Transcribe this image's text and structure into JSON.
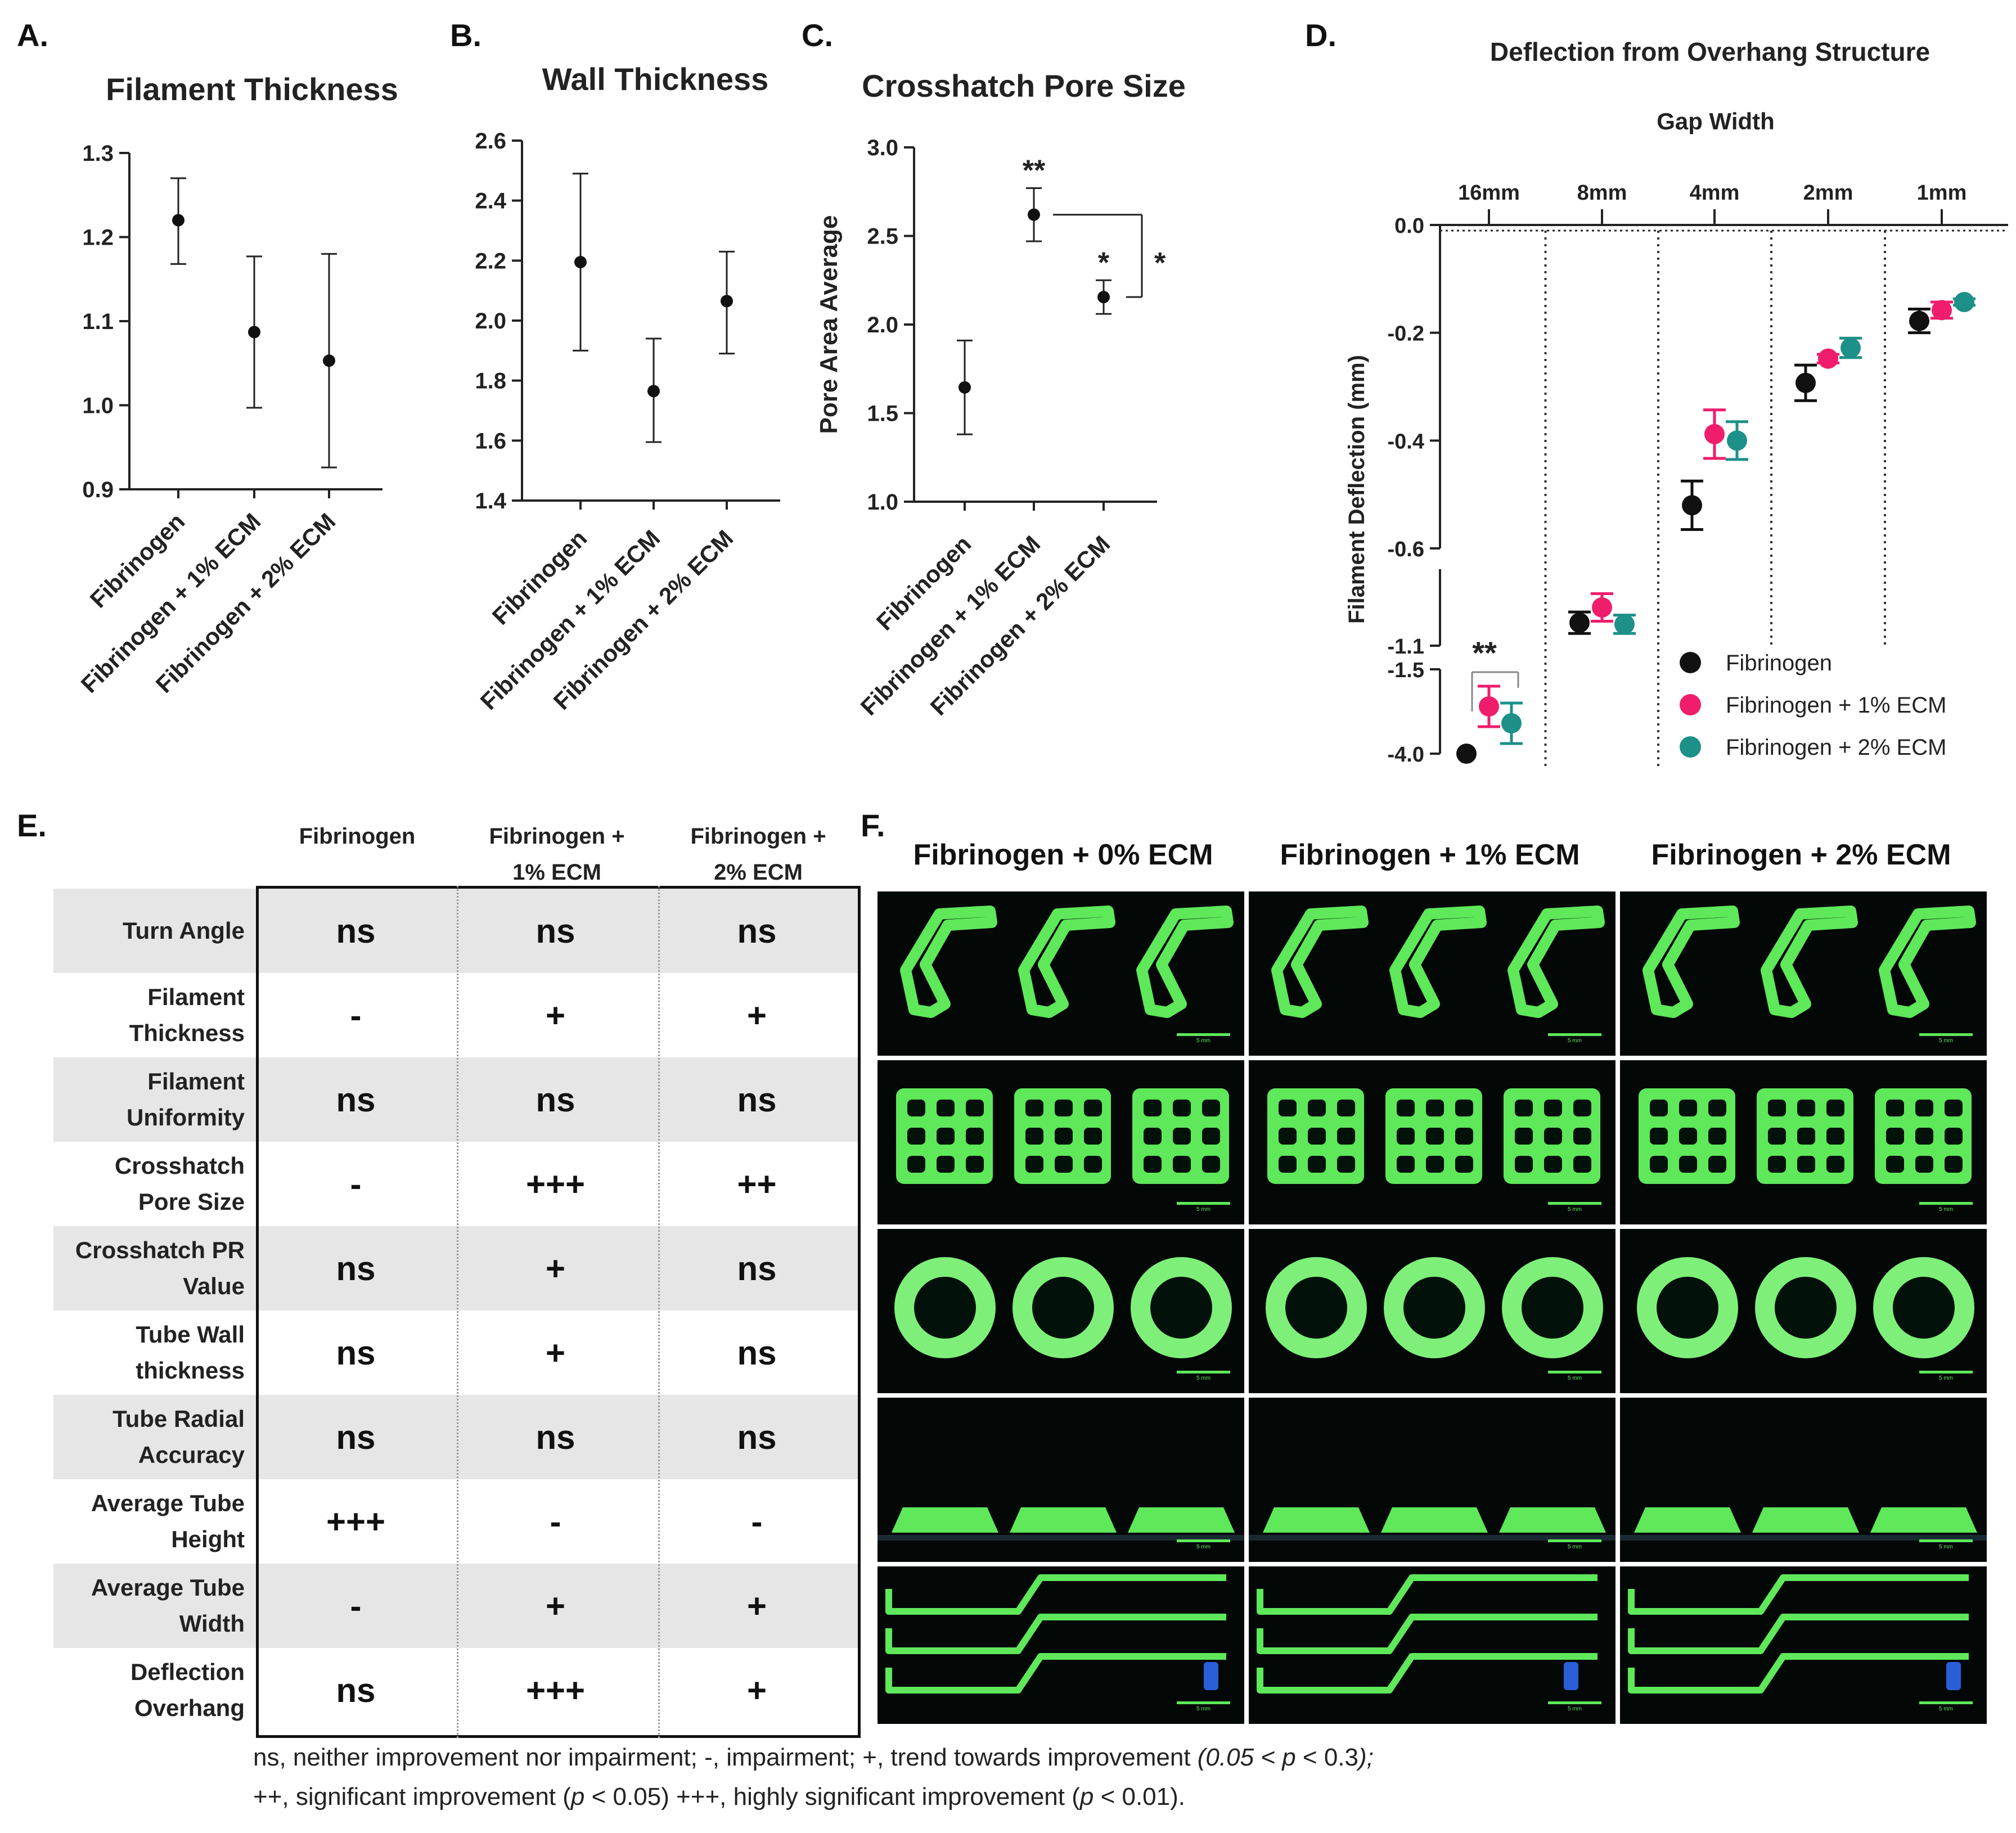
{
  "panels": {
    "A": {
      "letter": "A.",
      "chart_data": {
        "type": "scatter",
        "title": "Filament Thickness",
        "xlabel": "",
        "ylabel": "",
        "categories": [
          "Fibrinogen",
          "Fibrinogen + 1% ECM",
          "Fibrinogen + 2% ECM"
        ],
        "values": [
          1.22,
          1.087,
          1.053
        ],
        "err_low": [
          1.168,
          0.997,
          0.926
        ],
        "err_high": [
          1.27,
          1.177,
          1.18
        ],
        "ylim": [
          0.9,
          1.3
        ],
        "yticks": [
          "0.9",
          "1.0",
          "1.1",
          "1.2",
          "1.3"
        ],
        "grid": false
      }
    },
    "B": {
      "letter": "B.",
      "chart_data": {
        "type": "scatter",
        "title": "Wall Thickness",
        "xlabel": "",
        "ylabel": "",
        "categories": [
          "Fibrinogen",
          "Fibrinogen + 1% ECM",
          "Fibrinogen + 2% ECM"
        ],
        "values": [
          2.195,
          1.765,
          2.065
        ],
        "err_low": [
          1.9,
          1.595,
          1.89
        ],
        "err_high": [
          2.49,
          1.94,
          2.23
        ],
        "ylim": [
          1.4,
          2.6
        ],
        "yticks": [
          "1.4",
          "1.6",
          "1.8",
          "2.0",
          "2.2",
          "2.4",
          "2.6"
        ],
        "grid": false
      }
    },
    "C": {
      "letter": "C.",
      "chart_data": {
        "type": "scatter",
        "title": "Crosshatch Pore Size",
        "xlabel": "",
        "ylabel": "Pore Area Average",
        "categories": [
          "Fibrinogen",
          "Fibrinogen + 1% ECM",
          "Fibrinogen + 2% ECM"
        ],
        "values": [
          1.645,
          2.62,
          2.155
        ],
        "err_low": [
          1.38,
          2.47,
          2.06
        ],
        "err_high": [
          1.91,
          2.77,
          2.25
        ],
        "ylim": [
          1.0,
          3.0
        ],
        "yticks": [
          "1.0",
          "1.5",
          "2.0",
          "2.5",
          "3.0"
        ],
        "annotations": [
          "",
          "**",
          "*"
        ],
        "bracket_label": "*",
        "grid": false
      }
    },
    "D": {
      "letter": "D.",
      "chart_data": {
        "type": "scatter",
        "title": "Deflection from Overhang Structure",
        "xlabel": "Gap Width",
        "ylabel": "Filament Deflection (mm)",
        "categories": [
          "16mm",
          "8mm",
          "4mm",
          "2mm",
          "1mm"
        ],
        "series": [
          {
            "name": "Fibrinogen",
            "color": "#111111",
            "values": [
              -4.0,
              -0.95,
              -0.52,
              -0.293,
              -0.178
            ],
            "err": [
              0.0,
              0.07,
              0.045,
              0.033,
              0.022
            ]
          },
          {
            "name": "Fibrinogen + 1% ECM",
            "color": "#ef1d6b",
            "values": [
              -2.6,
              -0.85,
              -0.388,
              -0.248,
              -0.158
            ],
            "err": [
              0.6,
              0.09,
              0.045,
              0.008,
              0.015
            ]
          },
          {
            "name": "Fibrinogen + 2% ECM",
            "color": "#1c9089",
            "values": [
              -3.1,
              -0.96,
              -0.4,
              -0.228,
              -0.143
            ],
            "err": [
              0.6,
              0.06,
              0.035,
              0.018,
              0.006
            ]
          }
        ],
        "y_axis_segments": [
          {
            "range": [
              -0.6,
              0.0
            ],
            "ticks": [
              "0.0",
              "-0.2",
              "-0.4",
              "-0.6"
            ]
          },
          {
            "range": [
              -1.1,
              -0.6
            ],
            "ticks": [
              "-0.6",
              "-1.1"
            ]
          },
          {
            "range": [
              -4.0,
              -1.5
            ],
            "ticks": [
              "-1.5",
              "-4.0"
            ]
          }
        ],
        "significance": "**",
        "legend": "bottom-right",
        "grid": false
      }
    },
    "E": {
      "letter": "E.",
      "columns": [
        "Fibrinogen",
        "Fibrinogen +\n1% ECM",
        "Fibrinogen +\n2% ECM"
      ],
      "rows": [
        {
          "label": "Turn Angle",
          "values": [
            "ns",
            "ns",
            "ns"
          ]
        },
        {
          "label": "Filament\nThickness",
          "values": [
            "-",
            "+",
            "+"
          ]
        },
        {
          "label": "Filament\nUniformity",
          "values": [
            "ns",
            "ns",
            "ns"
          ]
        },
        {
          "label": "Crosshatch\nPore Size",
          "values": [
            "-",
            "+++",
            "++"
          ]
        },
        {
          "label": "Crosshatch PR\nValue",
          "values": [
            "ns",
            "+",
            "ns"
          ]
        },
        {
          "label": "Tube Wall\nthickness",
          "values": [
            "ns",
            "+",
            "ns"
          ]
        },
        {
          "label": "Tube Radial\nAccuracy",
          "values": [
            "ns",
            "ns",
            "ns"
          ]
        },
        {
          "label": "Average Tube\nHeight",
          "values": [
            "+++",
            "-",
            "-"
          ]
        },
        {
          "label": "Average Tube\nWidth",
          "values": [
            "-",
            "+",
            "+"
          ]
        },
        {
          "label": "Deflection\nOverhang",
          "values": [
            "ns",
            "+++",
            "+"
          ]
        }
      ],
      "footnote_line1_a": "ns, neither improvement nor impairment; -, impairment; +, trend towards improvement ",
      "footnote_line1_b": "(0.05 < ",
      "footnote_line1_p": "p",
      "footnote_line1_c": " < 0.3",
      "footnote_line1_d": ");",
      "footnote_line2_a": "++, significant improvement (",
      "footnote_line2_p1": "p",
      "footnote_line2_b": " < 0.05)  +++, highly significant improvement (",
      "footnote_line2_p2": "p",
      "footnote_line2_c": " < 0.01)."
    },
    "F": {
      "letter": "F.",
      "columns": [
        "Fibrinogen + 0% ECM",
        "Fibrinogen + 1% ECM",
        "Fibrinogen + 2% ECM"
      ],
      "rows": [
        "turn-angle",
        "crosshatch",
        "tube-top",
        "tube-side",
        "overhang"
      ],
      "scale_label": "5 mm",
      "colors": {
        "print": "#5ee85a",
        "background": "#030806"
      }
    }
  }
}
